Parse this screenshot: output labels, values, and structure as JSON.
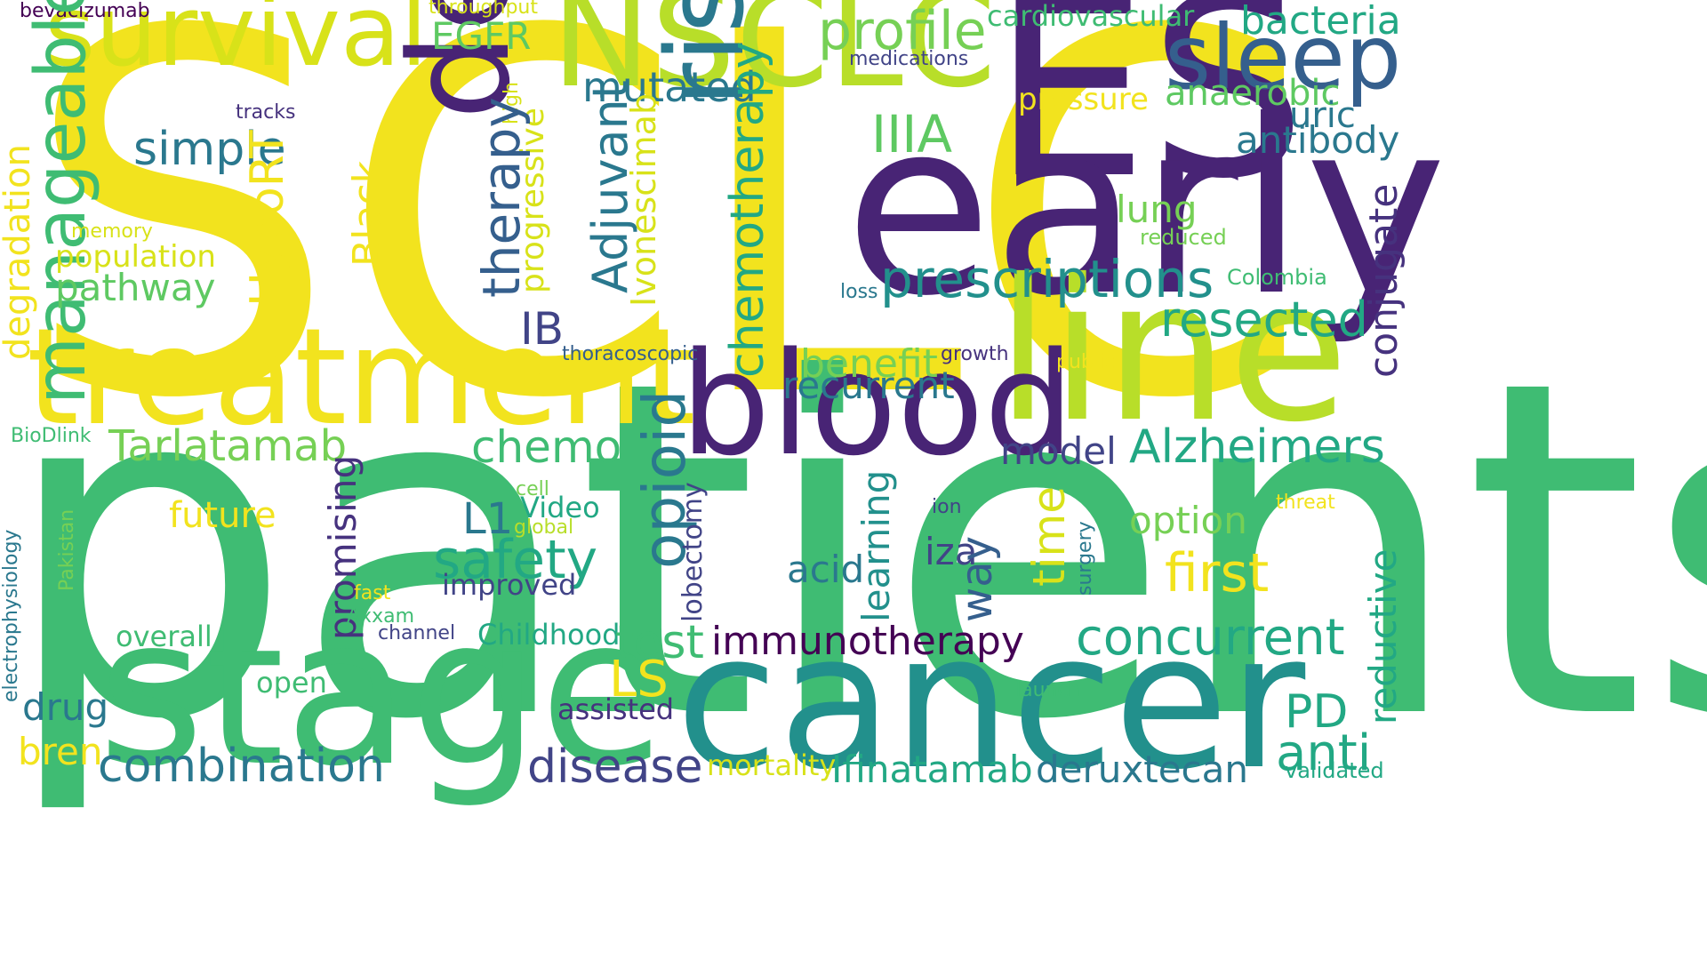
{
  "palette": {
    "yellow": "#f2e31e",
    "lime": "#b8de29",
    "lightgreen": "#76d055",
    "green": "#3fbc73",
    "teal": "#22a884",
    "tealblue": "#2a788e",
    "slate": "#355f8d",
    "indigo": "#414487",
    "purple": "#482475",
    "darkpurple": "#440154"
  },
  "words": [
    {
      "text": "SCLC",
      "color": "#f2e31e"
    },
    {
      "text": "patients",
      "color": "#3fbc73"
    },
    {
      "text": "ES",
      "color": "#482475"
    },
    {
      "text": "early",
      "color": "#482475"
    },
    {
      "text": "line",
      "color": "#b8de29"
    },
    {
      "text": "stage",
      "color": "#3fbc73"
    },
    {
      "text": "cancer",
      "color": "#22908c"
    },
    {
      "text": "NSCLC",
      "color": "#b8de29"
    },
    {
      "text": "survival",
      "color": "#d8e219"
    },
    {
      "text": "treatment",
      "color": "#f2e31e"
    },
    {
      "text": "blood",
      "color": "#482475"
    },
    {
      "text": "deep",
      "color": "#482475"
    },
    {
      "text": "risk",
      "color": "#2a788e"
    },
    {
      "text": "sleep",
      "color": "#355f8d"
    },
    {
      "text": "profile",
      "color": "#76d055"
    },
    {
      "text": "bacteria",
      "color": "#22a884"
    },
    {
      "text": "cardiovascular",
      "color": "#3fbc73"
    },
    {
      "text": "medications",
      "color": "#414487"
    },
    {
      "text": "EGFR",
      "color": "#5ec962"
    },
    {
      "text": "throughput",
      "color": "#d8e219"
    },
    {
      "text": "bevacizumab",
      "color": "#440154"
    },
    {
      "text": "mutated",
      "color": "#2a788e"
    },
    {
      "text": "pressure",
      "color": "#f2e31e"
    },
    {
      "text": "anaerobic",
      "color": "#5ec962"
    },
    {
      "text": "uric",
      "color": "#2a788e"
    },
    {
      "text": "antibody",
      "color": "#2a788e"
    },
    {
      "text": "IIIA",
      "color": "#5ec962"
    },
    {
      "text": "tracks",
      "color": "#46327e"
    },
    {
      "text": "high",
      "color": "#d8e219"
    },
    {
      "text": "simple",
      "color": "#2a788e"
    },
    {
      "text": "manageable",
      "color": "#3fbc73"
    },
    {
      "text": "degradation",
      "color": "#f2e31e"
    },
    {
      "text": "memory",
      "color": "#d8e219"
    },
    {
      "text": "population",
      "color": "#d8e219"
    },
    {
      "text": "pathway",
      "color": "#5ec962"
    },
    {
      "text": "HypoRT",
      "color": "#f2e31e"
    },
    {
      "text": "Black",
      "color": "#f2e31e"
    },
    {
      "text": "progressive",
      "color": "#d8e219"
    },
    {
      "text": "therapy",
      "color": "#355f8d"
    },
    {
      "text": "Ivonescimab",
      "color": "#d8e219"
    },
    {
      "text": "Adjuvant",
      "color": "#2a788e"
    },
    {
      "text": "chemotherapy",
      "color": "#22a884"
    },
    {
      "text": "lung",
      "color": "#76d055"
    },
    {
      "text": "reduced",
      "color": "#76d055"
    },
    {
      "text": "prescriptions",
      "color": "#22908c"
    },
    {
      "text": "Colombia",
      "color": "#3fbc73"
    },
    {
      "text": "loss",
      "color": "#2a788e"
    },
    {
      "text": "resected",
      "color": "#22a884"
    },
    {
      "text": "conjugate",
      "color": "#46327e"
    },
    {
      "text": "IB",
      "color": "#414487"
    },
    {
      "text": "thoracoscopic",
      "color": "#355f8d"
    },
    {
      "text": "benefit",
      "color": "#76d055"
    },
    {
      "text": "growth",
      "color": "#46327e"
    },
    {
      "text": "public",
      "color": "#f2e31e"
    },
    {
      "text": "recurrent",
      "color": "#2a788e"
    },
    {
      "text": "BioDlink",
      "color": "#3fbc73"
    },
    {
      "text": "Tarlatamab",
      "color": "#76d055"
    },
    {
      "text": "chemo",
      "color": "#3fbc73"
    },
    {
      "text": "opioid",
      "color": "#2a788e"
    },
    {
      "text": "model",
      "color": "#414487"
    },
    {
      "text": "Alzheimers",
      "color": "#22a884"
    },
    {
      "text": "promising",
      "color": "#46327e"
    },
    {
      "text": "future",
      "color": "#f2e31e"
    },
    {
      "text": "cell",
      "color": "#76d055"
    },
    {
      "text": "L1",
      "color": "#2a788e"
    },
    {
      "text": "Video",
      "color": "#22a884"
    },
    {
      "text": "global",
      "color": "#b8de29"
    },
    {
      "text": "lobectomy",
      "color": "#414487"
    },
    {
      "text": "learning",
      "color": "#22908c"
    },
    {
      "text": "time",
      "color": "#d8e219"
    },
    {
      "text": "ion",
      "color": "#414487"
    },
    {
      "text": "surgery",
      "color": "#2a788e"
    },
    {
      "text": "threat",
      "color": "#f2e31e"
    },
    {
      "text": "option",
      "color": "#76d055"
    },
    {
      "text": "safety",
      "color": "#22a884"
    },
    {
      "text": "electrophysiology",
      "color": "#2a788e"
    },
    {
      "text": "Pakistan",
      "color": "#76d055"
    },
    {
      "text": "acid",
      "color": "#2a788e"
    },
    {
      "text": "iza",
      "color": "#414487"
    },
    {
      "text": "first",
      "color": "#f2e31e"
    },
    {
      "text": "reductive",
      "color": "#22a884"
    },
    {
      "text": "way",
      "color": "#355f8d"
    },
    {
      "text": "fast",
      "color": "#f2e31e"
    },
    {
      "text": "improved",
      "color": "#414487"
    },
    {
      "text": "Axxam",
      "color": "#3fbc73"
    },
    {
      "text": "overall",
      "color": "#3fbc73"
    },
    {
      "text": "channel",
      "color": "#414487"
    },
    {
      "text": "Childhood",
      "color": "#22a884"
    },
    {
      "text": "test",
      "color": "#3fbc73"
    },
    {
      "text": "immunotherapy",
      "color": "#440154"
    },
    {
      "text": "concurrent",
      "color": "#22a884"
    },
    {
      "text": "LS",
      "color": "#f2e31e"
    },
    {
      "text": "launch",
      "color": "#3fbc73"
    },
    {
      "text": "PD",
      "color": "#22a884"
    },
    {
      "text": "open",
      "color": "#3fbc73"
    },
    {
      "text": "drug",
      "color": "#2a788e"
    },
    {
      "text": "assisted",
      "color": "#46327e"
    },
    {
      "text": "anti",
      "color": "#22a884"
    },
    {
      "text": "bren",
      "color": "#f2e31e"
    },
    {
      "text": "combination",
      "color": "#2a788e"
    },
    {
      "text": "disease",
      "color": "#414487"
    },
    {
      "text": "mortality",
      "color": "#d8e219"
    },
    {
      "text": "Ifinatamab",
      "color": "#22a884"
    },
    {
      "text": "deruxtecan",
      "color": "#2a788e"
    },
    {
      "text": "validated",
      "color": "#22a884"
    }
  ]
}
